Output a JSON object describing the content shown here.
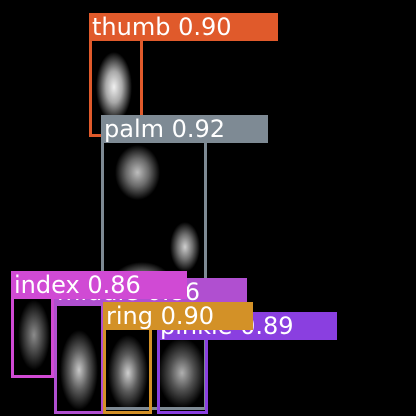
{
  "colors": {
    "thumb": "#e05a2b",
    "palm": "#7e8a94",
    "index": "#d04ad4",
    "middle": "#b04fd0",
    "ring": "#d39127",
    "pinkie": "#8a3fe0"
  },
  "detections": [
    {
      "id": "middle",
      "label": "middle",
      "score": "0.86"
    },
    {
      "id": "pinkie",
      "label": "pinkie",
      "score": "0.89"
    },
    {
      "id": "ring",
      "label": "ring",
      "score": "0.90"
    },
    {
      "id": "index",
      "label": "index",
      "score": "0.86"
    },
    {
      "id": "palm",
      "label": "palm",
      "score": "0.92"
    },
    {
      "id": "thumb",
      "label": "thumb",
      "score": "0.90"
    }
  ]
}
